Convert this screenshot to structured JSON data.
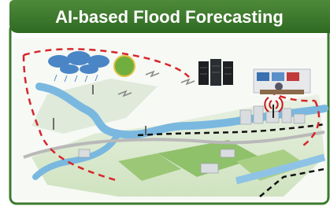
{
  "header": {
    "title": "AI-based Flood Forecasting"
  }
}
